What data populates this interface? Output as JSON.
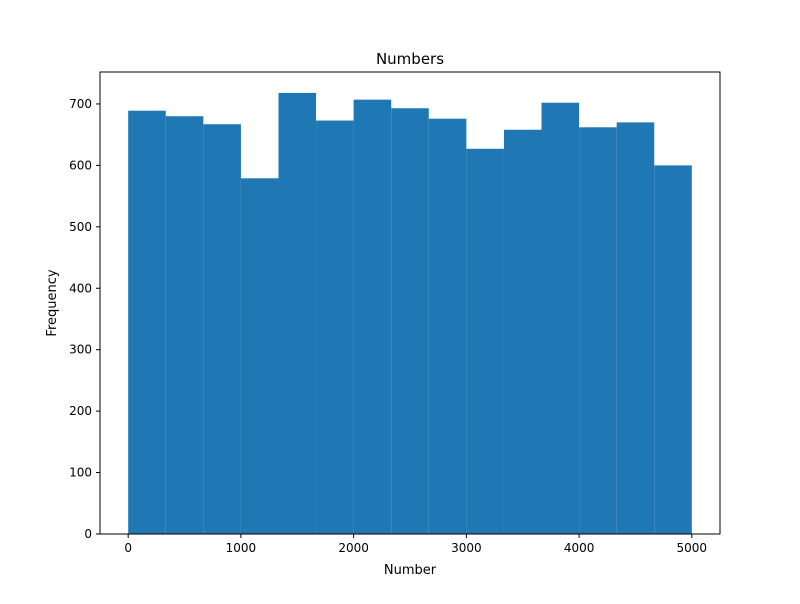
{
  "chart_data": {
    "type": "bar",
    "subtype": "histogram",
    "title": "Numbers",
    "xlabel": "Number",
    "ylabel": "Frequency",
    "bin_edges": [
      0,
      333.33,
      666.67,
      1000,
      1333.33,
      1666.67,
      2000,
      2333.33,
      2666.67,
      3000,
      3333.33,
      3666.67,
      4000,
      4333.33,
      4666.67,
      5000
    ],
    "values": [
      689,
      680,
      667,
      579,
      718,
      673,
      707,
      693,
      676,
      627,
      658,
      702,
      662,
      670,
      600
    ],
    "xlim": [
      -250,
      5250
    ],
    "ylim": [
      0,
      752
    ],
    "xticks": [
      0,
      1000,
      2000,
      3000,
      4000,
      5000
    ],
    "yticks": [
      0,
      100,
      200,
      300,
      400,
      500,
      600,
      700
    ],
    "bar_color": "#1f77b4",
    "grid": false,
    "legend": "none"
  }
}
